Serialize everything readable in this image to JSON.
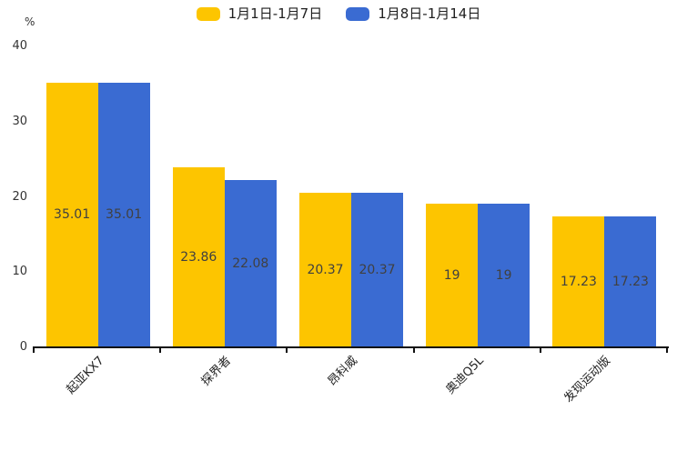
{
  "chart_data": {
    "type": "bar",
    "title": "",
    "unit_label": "%",
    "categories": [
      "起亚KX7",
      "探界者",
      "昂科威",
      "奥迪Q5L",
      "发现运动版"
    ],
    "series": [
      {
        "name": "1月1日-1月7日",
        "color": "#FDC500",
        "values": [
          35.01,
          23.86,
          20.37,
          19,
          17.23
        ],
        "value_labels": [
          "35.01",
          "23.86",
          "20.37",
          "19",
          "17.23"
        ]
      },
      {
        "name": "1月8日-1月14日",
        "color": "#3A6BD2",
        "values": [
          35.01,
          22.08,
          20.37,
          19,
          17.23
        ],
        "value_labels": [
          "35.01",
          "22.08",
          "20.37",
          "19",
          "17.23"
        ]
      }
    ],
    "ylabel": "%",
    "yticks": [
      0,
      10,
      20,
      30,
      40
    ],
    "ylim": [
      0,
      40
    ],
    "grid": false,
    "legend_position": "top-center",
    "value_label_position": "center-of-bar",
    "colors": {
      "axis": "#111111",
      "value_text": "#404040",
      "tick_text": "#333333",
      "category_text": "#222222"
    }
  }
}
